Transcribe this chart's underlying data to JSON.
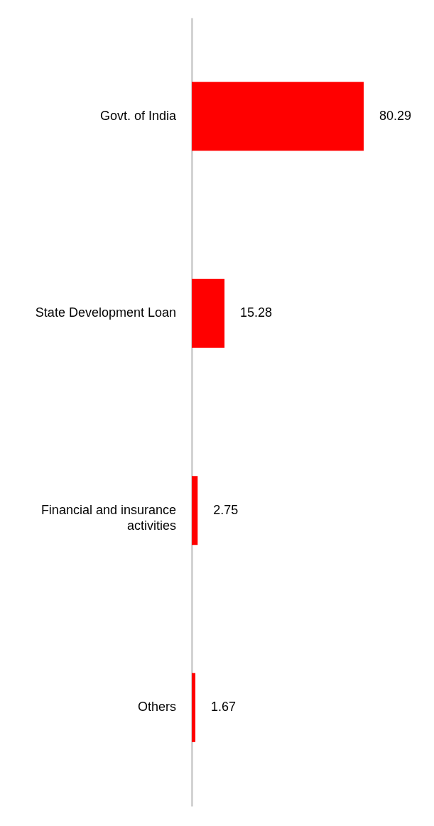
{
  "chart_data": {
    "type": "bar",
    "orientation": "horizontal",
    "categories": [
      "Govt. of India",
      "State Development Loan",
      "Financial and insurance activities",
      "Others"
    ],
    "values": [
      80.29,
      15.28,
      2.75,
      1.67
    ],
    "color": "#ff0000",
    "data_labels": true,
    "grid": false
  }
}
